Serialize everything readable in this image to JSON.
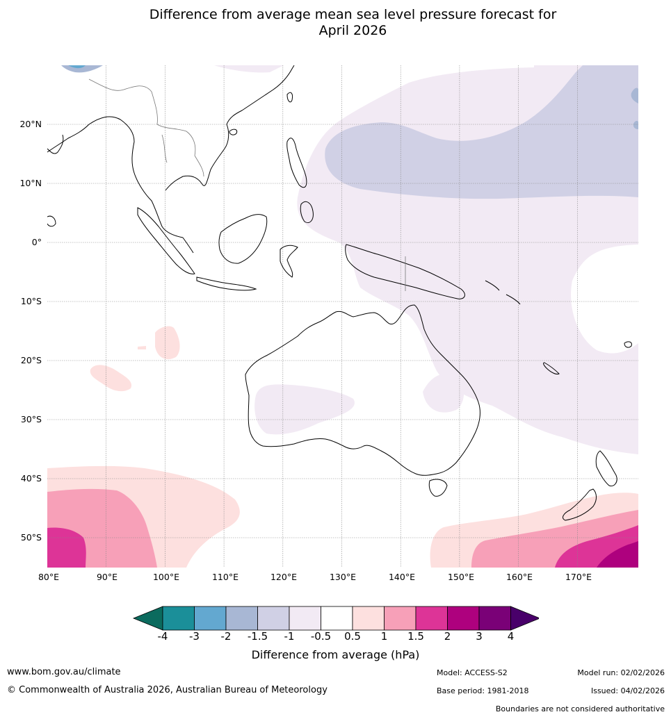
{
  "title_line1": "Difference from average mean sea level pressure forecast for",
  "title_line2": "April 2026",
  "lat_labels": [
    "20°N",
    "10°N",
    "0°",
    "10°S",
    "20°S",
    "30°S",
    "40°S",
    "50°S"
  ],
  "lon_labels": [
    "80°E",
    "90°E",
    "100°E",
    "110°E",
    "120°E",
    "130°E",
    "140°E",
    "150°E",
    "160°E",
    "170°E"
  ],
  "colorbar": {
    "ticks": [
      "-4",
      "-3",
      "-2",
      "-1.5",
      "-1",
      "-0.5",
      "0.5",
      "1",
      "1.5",
      "2",
      "3",
      "4"
    ],
    "colors": [
      "#1b8f99",
      "#63a8d0",
      "#a8b7d4",
      "#d0d0e5",
      "#f2eaf4",
      "#ffffff",
      "#fde0df",
      "#f7a0b8",
      "#dd3497",
      "#ae017e",
      "#7a0177"
    ],
    "under_color": "#0b6b5e",
    "over_color": "#49006a",
    "label": "Difference from average (hPa)"
  },
  "footer": {
    "url": "www.bom.gov.au/climate",
    "copyright": "© Commonwealth of Australia 2026, Australian Bureau of Meteorology",
    "model": "Model: ACCESS-S2",
    "base_period": "Base period: 1981-2018",
    "model_run": "Model run: 02/02/2026",
    "issued": "Issued: 04/02/2026",
    "disclaimer": "Boundaries are not considered authoritative"
  }
}
